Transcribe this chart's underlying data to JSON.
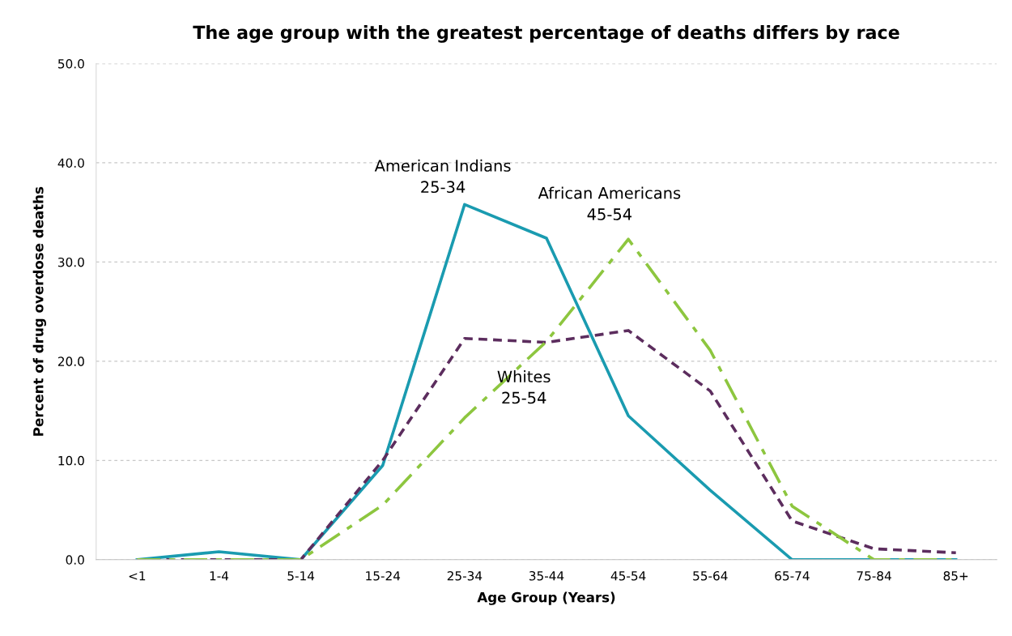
{
  "chart_data": {
    "type": "line",
    "title": "The age group with the greatest percentage of deaths differs by race",
    "xlabel": "Age Group (Years)",
    "ylabel": "Percent of drug overdose deaths",
    "categories": [
      "<1",
      "1-4",
      "5-14",
      "15-24",
      "25-34",
      "35-44",
      "45-54",
      "55-64",
      "65-74",
      "75-84",
      "85+"
    ],
    "series": [
      {
        "color": "#1a9bb0",
        "line_style": "solid",
        "values": [
          0,
          0.8,
          0,
          9.5,
          35.8,
          32.4,
          14.5,
          7.0,
          0,
          0,
          0
        ]
      },
      {
        "color": "#5c2d5e",
        "line_style": "dashed",
        "values": [
          0,
          0,
          0,
          10.0,
          22.3,
          21.9,
          23.1,
          17.0,
          3.9,
          1.1,
          0.7
        ]
      },
      {
        "color": "#8dc63f",
        "line_style": "dashdot",
        "values": [
          0,
          0,
          0,
          5.5,
          14.3,
          22.0,
          32.3,
          21.1,
          5.4,
          0,
          0
        ]
      }
    ],
    "annotations": [
      "American Indians\n25-34",
      "African Americans\n45-54",
      "Whites\n25-54"
    ],
    "ylim": [
      0,
      50
    ],
    "yticks": [
      {
        "value": 0,
        "label": "0.0"
      },
      {
        "value": 10,
        "label": "10.0"
      },
      {
        "value": 20,
        "label": "20.0"
      },
      {
        "value": 30,
        "label": "30.0"
      },
      {
        "value": 40,
        "label": "40.0"
      },
      {
        "value": 50,
        "label": "50.0"
      }
    ],
    "grid": "y",
    "legend": false
  }
}
